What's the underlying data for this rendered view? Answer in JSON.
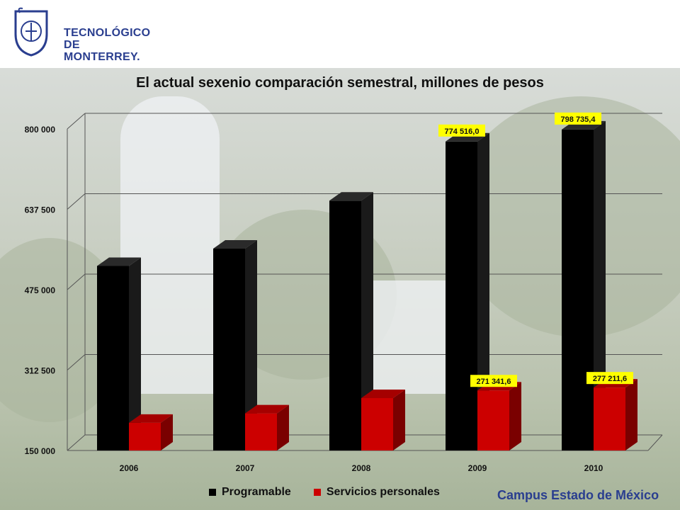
{
  "header": {
    "logo_line1": "TECNOLÓGICO",
    "logo_line2": "DE MONTERREY."
  },
  "footer": {
    "campus": "Campus Estado de México"
  },
  "colors": {
    "programable": "#000000",
    "servicios": "#cc0000",
    "label_bg": "#ffff00",
    "brand": "#2a3e8f"
  },
  "chart_data": {
    "type": "bar",
    "title": "El actual sexenio comparación semestral, millones de pesos",
    "categories": [
      "2006",
      "2007",
      "2008",
      "2009",
      "2010"
    ],
    "series": [
      {
        "name": "Programable",
        "values": [
          523000,
          558000,
          655000,
          774516.0,
          798735.4
        ],
        "data_labels": [
          "",
          "",
          "",
          "774 516,0",
          "798 735,4"
        ]
      },
      {
        "name": "Servicios personales",
        "values": [
          206000,
          225000,
          256000,
          271341.6,
          277211.6
        ],
        "data_labels": [
          "",
          "",
          "",
          "271 341,6",
          "277 211,6"
        ]
      }
    ],
    "ylim": [
      150000,
      800000
    ],
    "yticks": [
      150000,
      312500,
      475000,
      637500,
      800000
    ],
    "ytick_labels": [
      "150 000",
      "312 500",
      "475 000",
      "637 500",
      "800 000"
    ],
    "grid": true,
    "legend": "bottom"
  }
}
